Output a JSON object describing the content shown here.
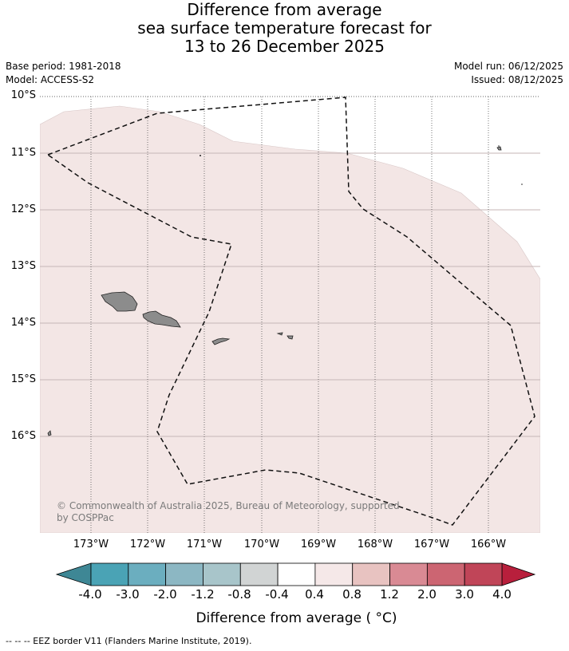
{
  "title": {
    "line1": "Difference from average",
    "line2": "sea surface temperature forecast for",
    "line3": "13 to 26 December 2025"
  },
  "meta": {
    "base_period": "Base period: 1981-2018",
    "model": "Model: ACCESS-S2",
    "model_run": "Model run: 06/12/2025",
    "issued": "Issued: 08/12/2025"
  },
  "map": {
    "lat_labels": [
      "10°S",
      "11°S",
      "12°S",
      "13°S",
      "14°S",
      "15°S",
      "16°S"
    ],
    "lon_labels": [
      "173°W",
      "172°W",
      "171°W",
      "170°W",
      "169°W",
      "168°W",
      "167°W",
      "166°W"
    ],
    "ocean_color": "#f3e6e5",
    "land_color": "#8c8c8c",
    "copyright_line1": "© Commonwealth of Australia 2025, Bureau of Meteorology, supported",
    "copyright_line2": "by COSPPac"
  },
  "colorbar": {
    "title": "Difference from average ( °C)",
    "tick_labels": [
      "-4.0",
      "-3.0",
      "-2.0",
      "-1.2",
      "-0.8",
      "-0.4",
      "0.4",
      "0.8",
      "1.2",
      "2.0",
      "3.0",
      "4.0"
    ],
    "colors": [
      "#3e8795",
      "#4aa3b5",
      "#6baebf",
      "#8cb7c3",
      "#a8c5ca",
      "#d1d4d4",
      "#ffffff",
      "#f5e8e8",
      "#e8c3c1",
      "#d98a94",
      "#cc6572",
      "#c04558",
      "#b81f3c"
    ]
  },
  "legend": {
    "eez_text": "-- -- -- EEZ border V11 (Flanders Marine Institute, 2019)."
  }
}
